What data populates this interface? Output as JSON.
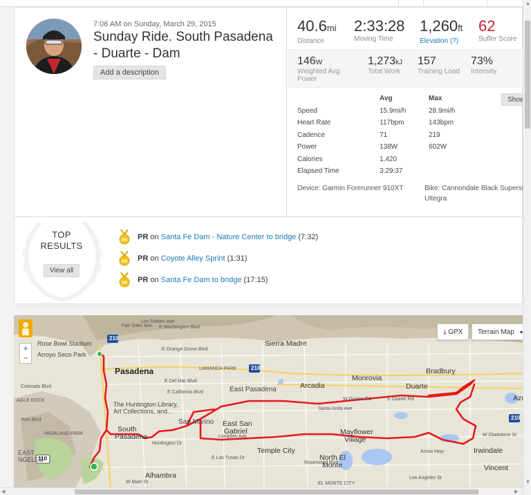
{
  "activity": {
    "timestamp": "7:06 AM on Sunday, March 29, 2015",
    "title": "Sunday Ride. South Pasadena - Duarte - Dam",
    "add_description": "Add a description"
  },
  "stats": {
    "distance": {
      "value": "40.6",
      "unit": "mi",
      "label": "Distance"
    },
    "moving_time": {
      "value": "2:33:28",
      "label": "Moving Time"
    },
    "elevation": {
      "value": "1,260",
      "unit": "ft",
      "label": "Elevation (?)"
    },
    "suffer_score": {
      "value": "62",
      "label": "Suffer Score"
    },
    "weighted_power": {
      "value": "146",
      "unit": "W",
      "label": "Weighted Avg Power"
    },
    "total_work": {
      "value": "1,273",
      "unit": "kJ",
      "label": "Total Work"
    },
    "training_load": {
      "value": "157",
      "label": "Training Load"
    },
    "intensity": {
      "value": "73%",
      "label": "Intensity"
    }
  },
  "details": {
    "avg_header": "Avg",
    "max_header": "Max",
    "show_label": "Show",
    "rows": [
      {
        "label": "Speed",
        "avg": "15.9mi/h",
        "max": "28.9mi/h"
      },
      {
        "label": "Heart Rate",
        "avg": "117bpm",
        "max": "143bpm"
      },
      {
        "label": "Cadence",
        "avg": "71",
        "max": "219"
      },
      {
        "label": "Power",
        "avg": "138W",
        "max": "602W"
      },
      {
        "label": "Calories",
        "avg": "1,420",
        "max": ""
      },
      {
        "label": "Elapsed Time",
        "avg": "3:29:37",
        "max": ""
      }
    ],
    "device": "Device: Garmin Forerunner 910XT",
    "bike_line1": "Bike: Cannondale Black Supersix",
    "bike_line2": "Ultegra"
  },
  "top_results": {
    "title_line1": "TOP",
    "title_line2": "RESULTS",
    "view_all": "View all",
    "items": [
      {
        "badge": "PR",
        "on": "on",
        "segment": "Santa Fe Dam - Nature Center to bridge",
        "time": "(7:32)"
      },
      {
        "badge": "PR",
        "on": "on",
        "segment": "Coyote Alley Sprint",
        "time": "(1:31)"
      },
      {
        "badge": "PR",
        "on": "on",
        "segment": "Santa Fe Dam to bridge",
        "time": "(17:15)"
      }
    ]
  },
  "map": {
    "gpx_label": "GPX",
    "map_type_label": "Terrain Map",
    "zoom_in": "+",
    "zoom_out": "−",
    "labels": {
      "rose_bowl": "Rose Bowl Stadium",
      "arroyo": "Arroyo Seco Park",
      "pasadena": "Pasadena",
      "sierra_madre": "Sierra Madre",
      "monrovia": "Monrovia",
      "bradbury": "Bradbury",
      "arcadia": "Arcadia",
      "duarte": "Duarte",
      "east_pasadena": "East Pasadena",
      "huntington": "The Huntington Library,",
      "huntington2": "Art Collections, and...",
      "san_marino": "San Marino",
      "east_san_gabriel": "East San",
      "east_san_gabriel2": "Gabriel",
      "south_pasadena": "South",
      "south_pasadena2": "Pasadena",
      "mayflower": "Mayflower",
      "mayflower2": "Village",
      "temple_city": "Temple City",
      "north_el_monte": "North El",
      "north_el_monte2": "Monte",
      "alhambra": "Alhambra",
      "irwindale": "Irwindale",
      "vincent": "Vincent",
      "azusa": "Azu",
      "highland_park": "HIGHLAND PARK",
      "colorado_blvd": "Colorado Blvd",
      "york_blvd": "York Blvd",
      "eagle_rock": "AGLE ROCK",
      "east_angeles": "EAST",
      "east_angeles2": "NGELES",
      "washington": "E Washington Blvd",
      "orange_grove": "E Orange Grove Blvd",
      "del_mar": "E Del Mar Blvd",
      "california": "E California Blvd",
      "lamanda": "LAMANDA PARK",
      "duarte_rd": "W Duarte Rd",
      "duarte_rd2": "E Duarte Rd",
      "gladstone": "W Gladstone St",
      "los_angeles_st": "Los Angeles St",
      "el_monte_city": "EL MONTE CITY",
      "main_st": "W Main St",
      "las_tunas": "E Las Tunas Dr",
      "longden": "Longden Ave",
      "huntington_dr": "Huntington Dr",
      "arrow_hwy": "Arrow Hwy",
      "fair_oaks": "Fair Oaks Ave",
      "los_robles": "Los Robles Ave",
      "santa_anita": "Santa Anita Ave",
      "rosemead": "Rosemead Blvd",
      "i210": "210",
      "i110": "110"
    }
  }
}
